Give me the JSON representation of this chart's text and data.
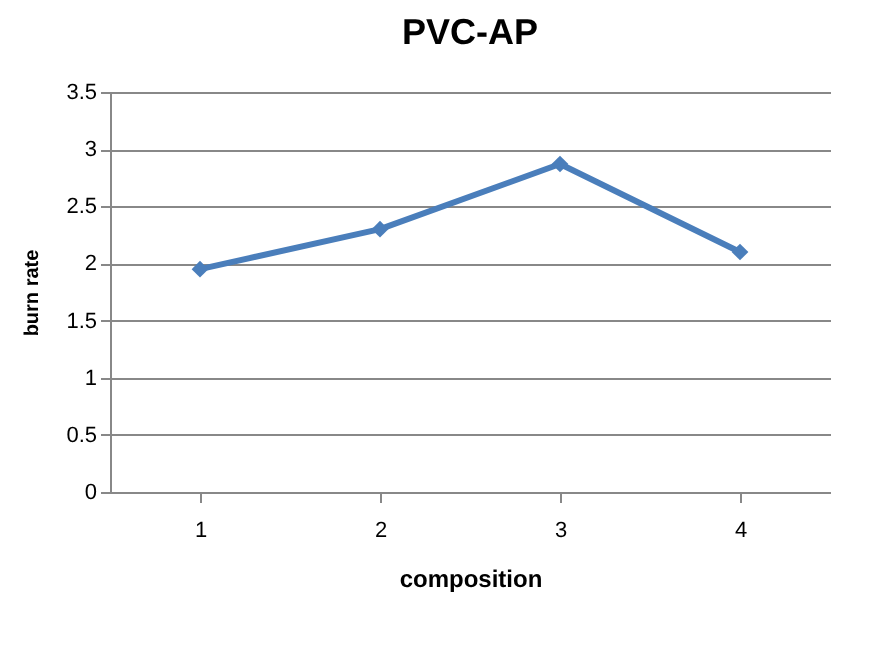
{
  "chart_data": {
    "type": "line",
    "title": "PVC-AP",
    "xlabel": "composition",
    "ylabel": "burn rate",
    "categories": [
      "1",
      "2",
      "3",
      "4"
    ],
    "series": [
      {
        "color": "#4a7ebb",
        "values": [
          1.95,
          2.3,
          2.87,
          2.1
        ]
      }
    ],
    "ylim": [
      0,
      3.5
    ],
    "yticks": [
      0,
      0.5,
      1,
      1.5,
      2,
      2.5,
      3,
      3.5
    ],
    "grid": "y",
    "marker": "diamond",
    "line_style": "solid"
  }
}
